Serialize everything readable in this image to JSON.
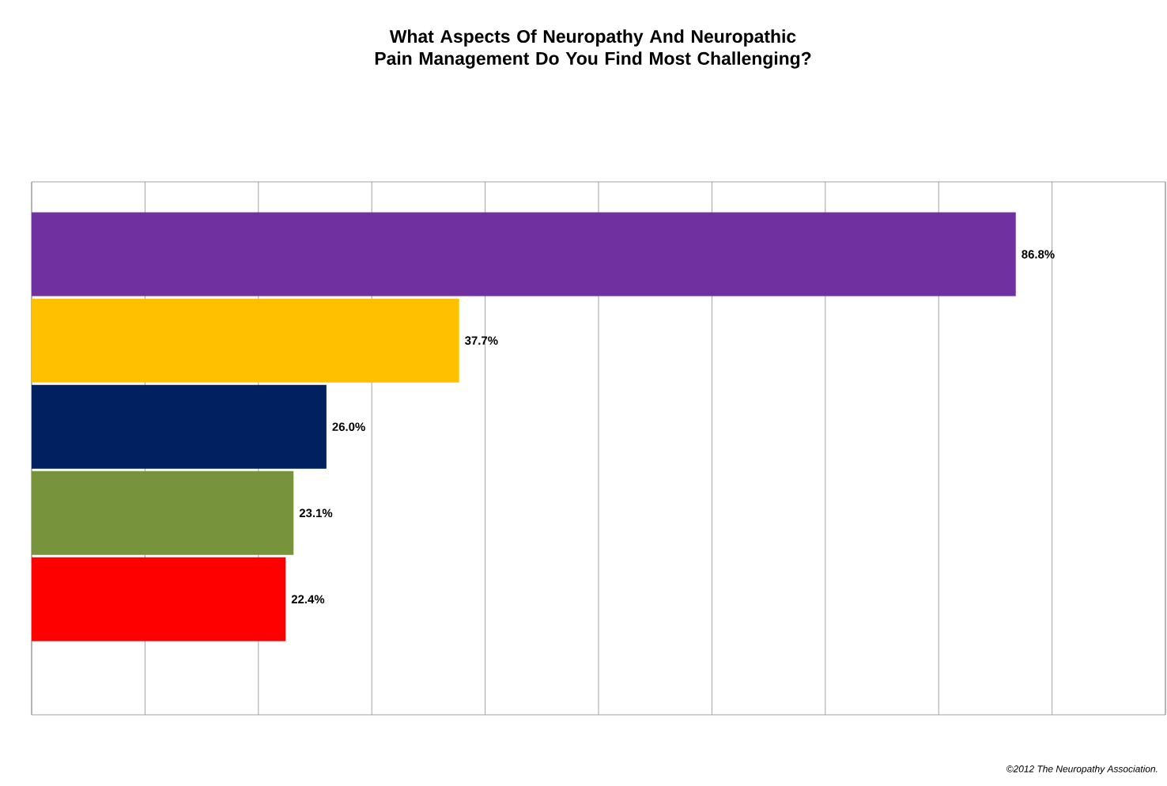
{
  "chart_data": {
    "type": "bar",
    "orientation": "horizontal",
    "title": "What Aspects Of Neuropathy And Neuropathic Pain Management Do You Find Most Challenging?",
    "categories": [
      null,
      null,
      null,
      null,
      null
    ],
    "values": [
      86.8,
      37.7,
      26.0,
      23.1,
      22.4
    ],
    "colors": [
      "#7030a0",
      "#ffc000",
      "#002060",
      "#77933c",
      "#ff0000"
    ],
    "value_labels": [
      "86.8%",
      "37.7%",
      "26.0%",
      "23.1%",
      "22.4%"
    ],
    "xlim": [
      0,
      100
    ],
    "xticks": [
      {
        "value": 0,
        "label": null
      },
      {
        "value": 10,
        "label": null
      },
      {
        "value": 20,
        "label": null
      },
      {
        "value": 30,
        "label": null
      },
      {
        "value": 40,
        "label": null
      },
      {
        "value": 50,
        "label": null
      },
      {
        "value": 60,
        "label": null
      },
      {
        "value": 70,
        "label": null
      },
      {
        "value": 80,
        "label": null
      },
      {
        "value": 90,
        "label": null
      },
      {
        "value": 100,
        "label": null
      }
    ],
    "grid": "x",
    "annotations": [
      "©2012 The Neuropathy Association."
    ]
  }
}
